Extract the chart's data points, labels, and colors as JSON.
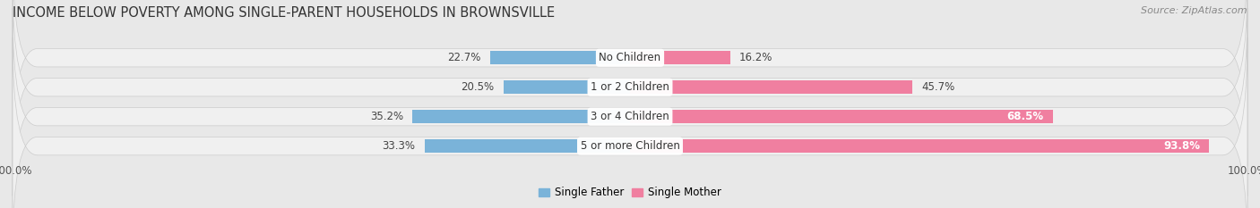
{
  "title": "INCOME BELOW POVERTY AMONG SINGLE-PARENT HOUSEHOLDS IN BROWNSVILLE",
  "source": "Source: ZipAtlas.com",
  "categories": [
    "No Children",
    "1 or 2 Children",
    "3 or 4 Children",
    "5 or more Children"
  ],
  "single_father": [
    22.7,
    20.5,
    35.2,
    33.3
  ],
  "single_mother": [
    16.2,
    45.7,
    68.5,
    93.8
  ],
  "max_val": 100.0,
  "color_father": "#7ab3d9",
  "color_mother": "#f07fa0",
  "bg_color": "#e8e8e8",
  "row_bg_color": "#f0f0f0",
  "title_fontsize": 10.5,
  "source_fontsize": 8,
  "label_fontsize": 8.5,
  "axis_label_fontsize": 8.5,
  "category_fontsize": 8.5
}
